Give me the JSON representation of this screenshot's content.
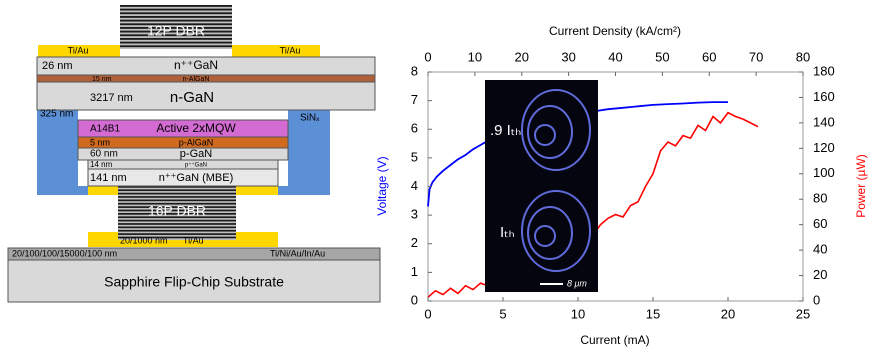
{
  "diagram": {
    "top_dbr": "12P DBR",
    "top_contacts": [
      "Ti/Au",
      "Ti/Au"
    ],
    "layers": [
      {
        "thickness": "26 nm",
        "name": "n⁺⁺GaN"
      },
      {
        "thickness": "15 nm",
        "name": "n-AlGaN"
      },
      {
        "thickness": "3217 nm",
        "name": "n-GaN"
      },
      {
        "thickness": "A14B1",
        "name": "Active 2xMQW"
      },
      {
        "thickness": "5 nm",
        "name": "p-AlGaN"
      },
      {
        "thickness": "60 nm",
        "name": "p-GaN"
      },
      {
        "thickness": "14 nm",
        "name": "p⁺⁺GaN"
      },
      {
        "thickness": "141 nm",
        "name": "n⁺⁺GaN (MBE)"
      }
    ],
    "passivation": {
      "thickness": "325 nm",
      "name": "SiNₓ"
    },
    "bottom_dbr": "16P DBR",
    "bottom_contact": {
      "thickness": "20/1000 nm",
      "name": "Ti/Au"
    },
    "bonding": {
      "thickness": "20/100/100/15000/100 nm",
      "name": "Ti/Ni/Au/In/Au"
    },
    "substrate": "Sapphire Flip-Chip Substrate"
  },
  "chart_data": {
    "type": "line",
    "xlabel": "Current (mA)",
    "ylabel": "Voltage (V)",
    "y2label": "Power (µW)",
    "x2label": "Current Density (kA/cm²)",
    "xlim": [
      0,
      25
    ],
    "xticks": [
      0,
      5,
      10,
      15,
      20,
      25
    ],
    "x2lim": [
      0,
      80
    ],
    "x2ticks": [
      0,
      10,
      20,
      30,
      40,
      50,
      60,
      70,
      80
    ],
    "ylim": [
      0,
      8
    ],
    "yticks": [
      0,
      1,
      2,
      3,
      4,
      5,
      6,
      7,
      8
    ],
    "y2lim": [
      0,
      180
    ],
    "y2ticks": [
      0,
      20,
      40,
      60,
      80,
      100,
      120,
      140,
      160,
      180
    ],
    "inset_labels": [
      ".9 Iₜₕ",
      "Iₜₕ",
      "8 μm"
    ],
    "series": [
      {
        "color": "#0000ff",
        "axis": "y",
        "x": [
          0,
          0.1,
          0.3,
          0.6,
          1,
          1.5,
          2,
          2.5,
          3,
          3.5,
          4,
          5,
          6,
          7,
          8,
          9,
          10,
          11,
          12,
          13,
          14,
          15,
          16,
          17,
          18,
          19,
          20
        ],
        "values": [
          3.3,
          3.9,
          4.15,
          4.35,
          4.55,
          4.75,
          4.95,
          5.1,
          5.3,
          5.45,
          5.6,
          5.85,
          6.05,
          6.2,
          6.35,
          6.45,
          6.55,
          6.62,
          6.7,
          6.75,
          6.8,
          6.85,
          6.88,
          6.9,
          6.93,
          6.95,
          6.95
        ]
      },
      {
        "color": "#ff0000",
        "axis": "y2",
        "x": [
          0,
          0.5,
          1,
          1.5,
          2,
          2.5,
          3,
          3.5,
          4,
          4.5,
          5,
          5.5,
          6,
          6.5,
          7,
          7.5,
          8,
          8.5,
          9,
          9.5,
          10,
          10.5,
          11,
          11.5,
          12,
          12.5,
          13,
          13.5,
          14,
          14.5,
          15,
          15.5,
          16,
          16.5,
          17,
          17.5,
          18,
          18.5,
          19,
          19.5,
          20,
          20.5,
          21,
          21.5,
          22
        ],
        "values": [
          3,
          8,
          5,
          10,
          6,
          12,
          9,
          14,
          12,
          16,
          18,
          20,
          22,
          25,
          27,
          30,
          33,
          35,
          38,
          42,
          45,
          48,
          52,
          60,
          65,
          68,
          66,
          75,
          78,
          90,
          100,
          118,
          125,
          122,
          130,
          128,
          138,
          134,
          145,
          140,
          148,
          145,
          143,
          140,
          137
        ]
      }
    ]
  }
}
